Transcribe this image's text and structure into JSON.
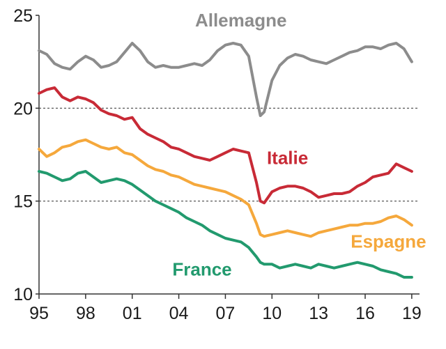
{
  "chart_data": {
    "type": "line",
    "title": "",
    "xlabel": "",
    "ylabel": "",
    "xlim": [
      1995,
      2019.5
    ],
    "ylim": [
      10,
      25
    ],
    "y_ticks": [
      10,
      15,
      20,
      25
    ],
    "y_tick_labels": [
      "10",
      "15",
      "20",
      "25"
    ],
    "x_ticks": [
      1995,
      1998,
      2001,
      2004,
      2007,
      2010,
      2013,
      2016,
      2019
    ],
    "x_tick_labels": [
      "95",
      "98",
      "01",
      "04",
      "07",
      "10",
      "13",
      "16",
      "19"
    ],
    "gridlines_y": [
      15,
      20
    ],
    "grid_style": "dashed",
    "legend": "none (series labelled directly on the plot)",
    "series": [
      {
        "name": "Allemagne",
        "color": "#8c8c8c",
        "x": [
          1995,
          1995.5,
          1996,
          1996.5,
          1997,
          1997.5,
          1998,
          1998.5,
          1999,
          1999.5,
          2000,
          2000.5,
          2001,
          2001.5,
          2002,
          2002.5,
          2003,
          2003.5,
          2004,
          2004.5,
          2005,
          2005.5,
          2006,
          2006.5,
          2007,
          2007.5,
          2008,
          2008.5,
          2009,
          2009.25,
          2009.5,
          2010,
          2010.5,
          2011,
          2011.5,
          2012,
          2012.5,
          2013,
          2013.5,
          2014,
          2014.5,
          2015,
          2015.5,
          2016,
          2016.5,
          2017,
          2017.5,
          2018,
          2018.5,
          2019
        ],
        "values": [
          23.1,
          22.9,
          22.4,
          22.2,
          22.1,
          22.5,
          22.8,
          22.6,
          22.2,
          22.3,
          22.5,
          23.0,
          23.5,
          23.1,
          22.5,
          22.2,
          22.3,
          22.2,
          22.2,
          22.3,
          22.4,
          22.3,
          22.6,
          23.1,
          23.4,
          23.5,
          23.4,
          22.8,
          20.6,
          19.6,
          19.8,
          21.5,
          22.3,
          22.7,
          22.9,
          22.8,
          22.6,
          22.5,
          22.4,
          22.6,
          22.8,
          23.0,
          23.1,
          23.3,
          23.3,
          23.2,
          23.4,
          23.5,
          23.2,
          22.5
        ]
      },
      {
        "name": "Italie",
        "color": "#c82a36",
        "x": [
          1995,
          1995.5,
          1996,
          1996.5,
          1997,
          1997.5,
          1998,
          1998.5,
          1999,
          1999.5,
          2000,
          2000.5,
          2001,
          2001.5,
          2002,
          2002.5,
          2003,
          2003.5,
          2004,
          2004.5,
          2005,
          2005.5,
          2006,
          2006.5,
          2007,
          2007.5,
          2008,
          2008.5,
          2009,
          2009.25,
          2009.5,
          2010,
          2010.5,
          2011,
          2011.5,
          2012,
          2012.5,
          2013,
          2013.5,
          2014,
          2014.5,
          2015,
          2015.5,
          2016,
          2016.5,
          2017,
          2017.5,
          2018,
          2018.5,
          2019
        ],
        "values": [
          20.8,
          21.0,
          21.1,
          20.6,
          20.4,
          20.6,
          20.5,
          20.3,
          19.9,
          19.7,
          19.6,
          19.4,
          19.5,
          18.9,
          18.6,
          18.4,
          18.2,
          17.9,
          17.8,
          17.6,
          17.4,
          17.3,
          17.2,
          17.4,
          17.6,
          17.8,
          17.7,
          17.6,
          16.0,
          15.0,
          14.9,
          15.5,
          15.7,
          15.8,
          15.8,
          15.7,
          15.5,
          15.2,
          15.3,
          15.4,
          15.4,
          15.5,
          15.8,
          16.0,
          16.3,
          16.4,
          16.5,
          17.0,
          16.8,
          16.6
        ]
      },
      {
        "name": "Espagne",
        "color": "#f5a83c",
        "x": [
          1995,
          1995.5,
          1996,
          1996.5,
          1997,
          1997.5,
          1998,
          1998.5,
          1999,
          1999.5,
          2000,
          2000.5,
          2001,
          2001.5,
          2002,
          2002.5,
          2003,
          2003.5,
          2004,
          2004.5,
          2005,
          2005.5,
          2006,
          2006.5,
          2007,
          2007.5,
          2008,
          2008.5,
          2009,
          2009.25,
          2009.5,
          2010,
          2010.5,
          2011,
          2011.5,
          2012,
          2012.5,
          2013,
          2013.5,
          2014,
          2014.5,
          2015,
          2015.5,
          2016,
          2016.5,
          2017,
          2017.5,
          2018,
          2018.5,
          2019
        ],
        "values": [
          17.8,
          17.4,
          17.6,
          17.9,
          18.0,
          18.2,
          18.3,
          18.1,
          17.9,
          17.8,
          17.9,
          17.6,
          17.5,
          17.2,
          16.9,
          16.7,
          16.6,
          16.4,
          16.3,
          16.1,
          15.9,
          15.8,
          15.7,
          15.6,
          15.5,
          15.3,
          15.1,
          14.8,
          13.8,
          13.2,
          13.1,
          13.2,
          13.3,
          13.4,
          13.3,
          13.2,
          13.1,
          13.3,
          13.4,
          13.5,
          13.6,
          13.7,
          13.7,
          13.8,
          13.8,
          13.9,
          14.1,
          14.2,
          14.0,
          13.7
        ]
      },
      {
        "name": "France",
        "color": "#229a6e",
        "x": [
          1995,
          1995.5,
          1996,
          1996.5,
          1997,
          1997.5,
          1998,
          1998.5,
          1999,
          1999.5,
          2000,
          2000.5,
          2001,
          2001.5,
          2002,
          2002.5,
          2003,
          2003.5,
          2004,
          2004.5,
          2005,
          2005.5,
          2006,
          2006.5,
          2007,
          2007.5,
          2008,
          2008.5,
          2009,
          2009.25,
          2009.5,
          2010,
          2010.5,
          2011,
          2011.5,
          2012,
          2012.5,
          2013,
          2013.5,
          2014,
          2014.5,
          2015,
          2015.5,
          2016,
          2016.5,
          2017,
          2017.5,
          2018,
          2018.5,
          2019
        ],
        "values": [
          16.6,
          16.5,
          16.3,
          16.1,
          16.2,
          16.5,
          16.6,
          16.3,
          16.0,
          16.1,
          16.2,
          16.1,
          15.9,
          15.6,
          15.3,
          15.0,
          14.8,
          14.6,
          14.4,
          14.1,
          13.9,
          13.7,
          13.4,
          13.2,
          13.0,
          12.9,
          12.8,
          12.5,
          12.0,
          11.7,
          11.6,
          11.6,
          11.4,
          11.5,
          11.6,
          11.5,
          11.4,
          11.6,
          11.5,
          11.4,
          11.5,
          11.6,
          11.7,
          11.6,
          11.5,
          11.3,
          11.2,
          11.1,
          10.9,
          10.9
        ]
      }
    ],
    "annotations": [
      {
        "text": "Allemagne",
        "series": "Allemagne",
        "at": [
          2008,
          24.4
        ]
      },
      {
        "text": "Italie",
        "series": "Italie",
        "at": [
          2011,
          17.0
        ]
      },
      {
        "text": "Espagne",
        "series": "Espagne",
        "at": [
          2017.5,
          12.5
        ]
      },
      {
        "text": "France",
        "series": "France",
        "at": [
          2005.5,
          11.0
        ]
      }
    ]
  }
}
